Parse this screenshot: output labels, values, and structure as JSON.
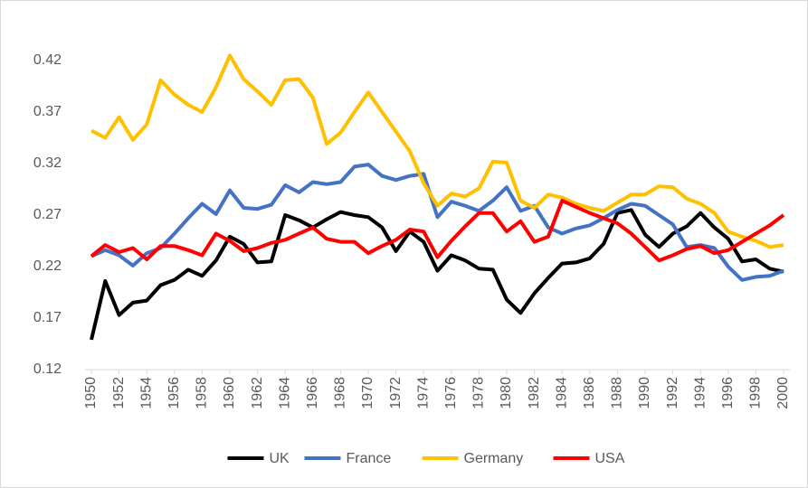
{
  "chart_data": {
    "type": "line",
    "x": [
      1950,
      1951,
      1952,
      1953,
      1954,
      1955,
      1956,
      1957,
      1958,
      1959,
      1960,
      1961,
      1962,
      1963,
      1964,
      1965,
      1966,
      1967,
      1968,
      1969,
      1970,
      1971,
      1972,
      1973,
      1974,
      1975,
      1976,
      1977,
      1978,
      1979,
      1980,
      1981,
      1982,
      1983,
      1984,
      1985,
      1986,
      1987,
      1988,
      1989,
      1990,
      1991,
      1992,
      1993,
      1994,
      1995,
      1996,
      1997,
      1998,
      1999,
      2000
    ],
    "xlim": [
      1950,
      2000
    ],
    "xticks": [
      1950,
      1952,
      1954,
      1956,
      1958,
      1960,
      1962,
      1964,
      1966,
      1968,
      1970,
      1972,
      1974,
      1976,
      1978,
      1980,
      1982,
      1984,
      1986,
      1988,
      1990,
      1992,
      1994,
      1996,
      1998,
      2000
    ],
    "ylim": [
      0.12,
      0.42
    ],
    "yticks": [
      0.12,
      0.17,
      0.22,
      0.27,
      0.32,
      0.37,
      0.42
    ],
    "grid": false,
    "legend": "bottom",
    "series": [
      {
        "name": "UK",
        "color": "#000000",
        "values": [
          0.149,
          0.206,
          0.173,
          0.185,
          0.187,
          0.202,
          0.207,
          0.217,
          0.211,
          0.226,
          0.249,
          0.242,
          0.224,
          0.225,
          0.27,
          0.265,
          0.258,
          0.266,
          0.273,
          0.27,
          0.268,
          0.258,
          0.235,
          0.254,
          0.244,
          0.216,
          0.231,
          0.226,
          0.218,
          0.217,
          0.188,
          0.175,
          0.194,
          0.209,
          0.223,
          0.224,
          0.228,
          0.242,
          0.272,
          0.275,
          0.251,
          0.239,
          0.252,
          0.259,
          0.272,
          0.258,
          0.247,
          0.225,
          0.227,
          0.218,
          0.215
        ]
      },
      {
        "name": "France",
        "color": "#4472c4",
        "values": [
          0.23,
          0.236,
          0.231,
          0.221,
          0.233,
          0.238,
          0.252,
          0.267,
          0.281,
          0.271,
          0.294,
          0.277,
          0.276,
          0.28,
          0.299,
          0.292,
          0.302,
          0.3,
          0.302,
          0.317,
          0.319,
          0.308,
          0.304,
          0.308,
          0.31,
          0.268,
          0.283,
          0.279,
          0.274,
          0.284,
          0.297,
          0.274,
          0.279,
          0.258,
          0.252,
          0.257,
          0.26,
          0.267,
          0.275,
          0.281,
          0.279,
          0.27,
          0.261,
          0.239,
          0.241,
          0.238,
          0.22,
          0.207,
          0.21,
          0.211,
          0.216
        ]
      },
      {
        "name": "Germany",
        "color": "#ffc000",
        "values": [
          0.352,
          0.345,
          0.365,
          0.343,
          0.358,
          0.401,
          0.387,
          0.377,
          0.37,
          0.394,
          0.425,
          0.402,
          0.39,
          0.377,
          0.401,
          0.402,
          0.384,
          0.339,
          0.35,
          0.37,
          0.389,
          0.37,
          0.351,
          0.332,
          0.301,
          0.279,
          0.291,
          0.288,
          0.296,
          0.322,
          0.321,
          0.284,
          0.277,
          0.29,
          0.287,
          0.281,
          0.277,
          0.274,
          0.282,
          0.29,
          0.29,
          0.298,
          0.297,
          0.286,
          0.281,
          0.272,
          0.254,
          0.249,
          0.245,
          0.239,
          0.241
        ]
      },
      {
        "name": "USA",
        "color": "#ff0000",
        "values": [
          0.23,
          0.241,
          0.234,
          0.238,
          0.227,
          0.24,
          0.24,
          0.236,
          0.231,
          0.252,
          0.245,
          0.235,
          0.238,
          0.243,
          0.246,
          0.252,
          0.258,
          0.247,
          0.244,
          0.244,
          0.233,
          0.24,
          0.246,
          0.256,
          0.254,
          0.229,
          0.245,
          0.259,
          0.272,
          0.272,
          0.254,
          0.264,
          0.244,
          0.249,
          0.284,
          0.278,
          0.272,
          0.267,
          0.262,
          0.252,
          0.239,
          0.226,
          0.231,
          0.237,
          0.24,
          0.233,
          0.236,
          0.244,
          0.252,
          0.26,
          0.27
        ]
      }
    ]
  }
}
